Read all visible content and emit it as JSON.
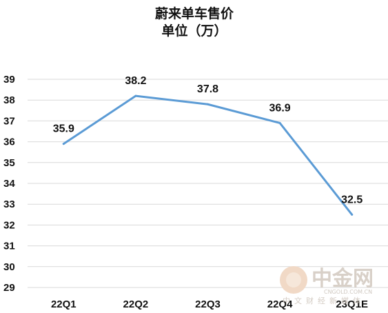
{
  "chart_data": {
    "type": "line",
    "title": "蔚来单车售价",
    "subtitle": "单位（万）",
    "categories": [
      "22Q1",
      "22Q2",
      "22Q3",
      "22Q4",
      "23Q1E"
    ],
    "series": [
      {
        "values": [
          35.9,
          38.2,
          37.8,
          36.9,
          32.5
        ]
      }
    ],
    "ylim": [
      29,
      39
    ],
    "yticks": [
      29,
      30,
      31,
      32,
      33,
      34,
      35,
      36,
      37,
      38,
      39
    ],
    "grid": true,
    "legend": "none",
    "colors": {
      "line": "#5b9bd5",
      "grid": "#d9d9d9"
    }
  },
  "watermark": {
    "brand": "中金网",
    "domain": "CNGOLD.COM.CN",
    "tagline": "中文财经新媒体"
  }
}
